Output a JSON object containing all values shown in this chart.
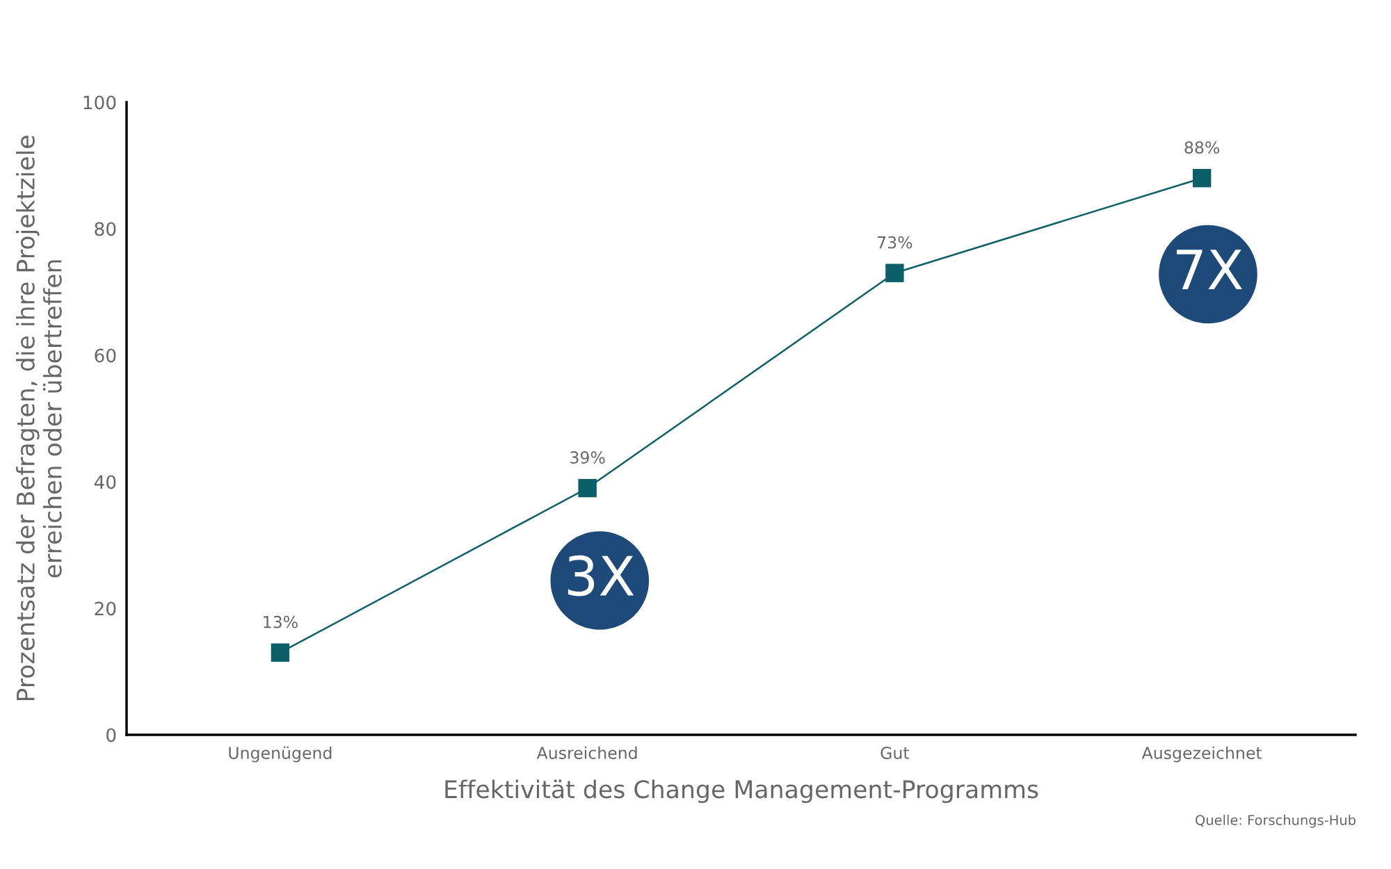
{
  "chart_data": {
    "type": "line",
    "xlabel": "Effektivität des Change Management-Programms",
    "ylabel": "Prozentsatz der Befragten, die ihre Projektziele\nerreichen oder übertreffen",
    "categories": [
      "Ungenügend",
      "Ausreichend",
      "Gut",
      "Ausgezeichnet"
    ],
    "series": [
      {
        "color": "#0b5f68",
        "values": [
          13,
          39,
          73,
          88
        ],
        "value_labels": [
          "13%",
          "39%",
          "73%",
          "88%"
        ]
      }
    ],
    "marker": "square",
    "line_style": "solid",
    "grid": false,
    "legend": false,
    "ylim": [
      0,
      100
    ],
    "yticks": [
      0,
      20,
      40,
      60,
      80,
      100
    ],
    "annotations": [
      "3X",
      "7X",
      "Quelle: Forschungs-Hub"
    ]
  }
}
